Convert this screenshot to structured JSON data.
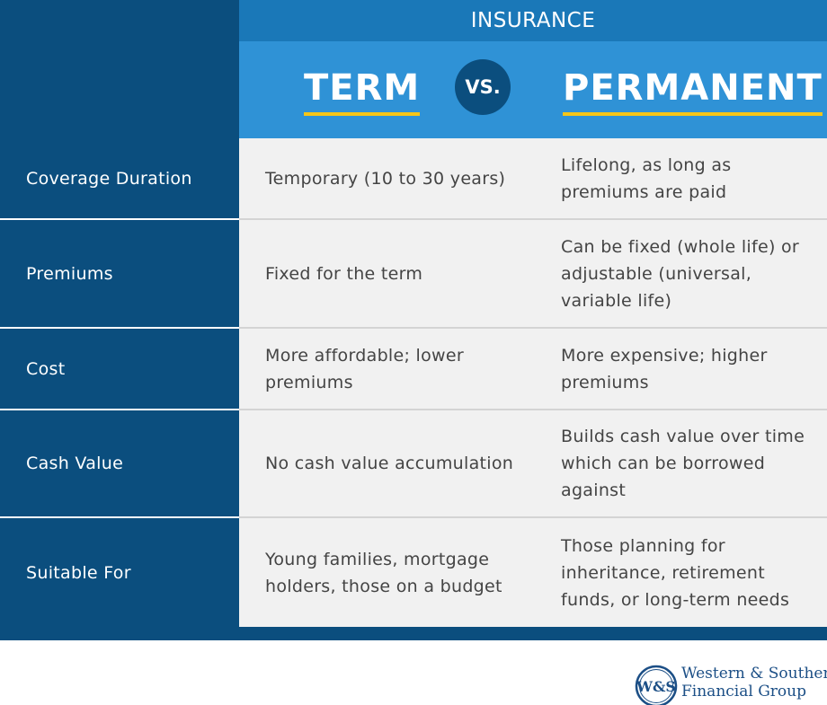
{
  "header": {
    "category": "INSURANCE",
    "left": "TERM",
    "vs": "VS.",
    "right": "PERMANENT"
  },
  "rows": [
    {
      "label": "Coverage Duration",
      "term": "Temporary (10 to 30 years)",
      "permanent": "Lifelong, as long as premiums are paid"
    },
    {
      "label": "Premiums",
      "term": "Fixed for the term",
      "permanent": "Can be fixed (whole life) or adjustable (universal, variable life)"
    },
    {
      "label": "Cost",
      "term": "More affordable; lower premiums",
      "permanent": "More expensive; higher premiums"
    },
    {
      "label": "Cash Value",
      "term": "No cash value accumulation",
      "permanent": "Builds cash value over time which can be borrowed against"
    },
    {
      "label": "Suitable For",
      "term": "Young families, mortgage holders, those on a budget",
      "permanent": "Those planning for inheritance, retirement funds, or long-term needs"
    }
  ],
  "logo": {
    "mark": "W&S",
    "line1": "Western & Southern",
    "line2": "Financial Group"
  },
  "colors": {
    "label_bg": "#0b4e7e",
    "header_top": "#1a78b8",
    "header_main": "#2f92d6",
    "accent": "#f5c518",
    "cell_bg": "#f1f1f1"
  }
}
